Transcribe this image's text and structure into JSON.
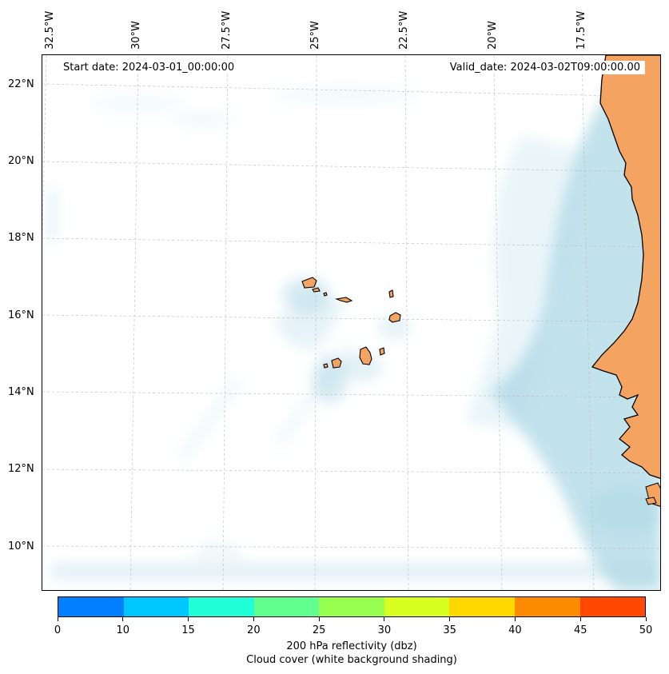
{
  "map": {
    "title_start": "Start date: 2024-03-01_00:00:00",
    "title_valid": "Valid_date: 2024-03-02T09:00:00.00",
    "longitude_labels": [
      "32.5°W",
      "30°W",
      "27.5°W",
      "25°W",
      "22.5°W",
      "20°W",
      "17.5°W"
    ],
    "latitude_labels": [
      "22°N",
      "20°N",
      "18°N",
      "16°N",
      "14°N",
      "12°N",
      "10°N"
    ],
    "features": [
      "Cape Verde islands",
      "West African coastline",
      "cloud cover shading"
    ],
    "colors": {
      "land": "#f4a460",
      "cloud": "#add8e6",
      "grid": "#b0b0b0"
    }
  },
  "colorbar": {
    "ticks": [
      "0",
      "10",
      "15",
      "20",
      "25",
      "30",
      "35",
      "40",
      "45",
      "50"
    ],
    "colors": [
      "#0080ff",
      "#00c8ff",
      "#20ffd8",
      "#60ff90",
      "#98ff50",
      "#d8ff20",
      "#ffd800",
      "#ff8c00",
      "#ff4800"
    ],
    "label_line1": "200 hPa reflectivity (dbz)",
    "label_line2": "Cloud cover (white background shading)"
  }
}
